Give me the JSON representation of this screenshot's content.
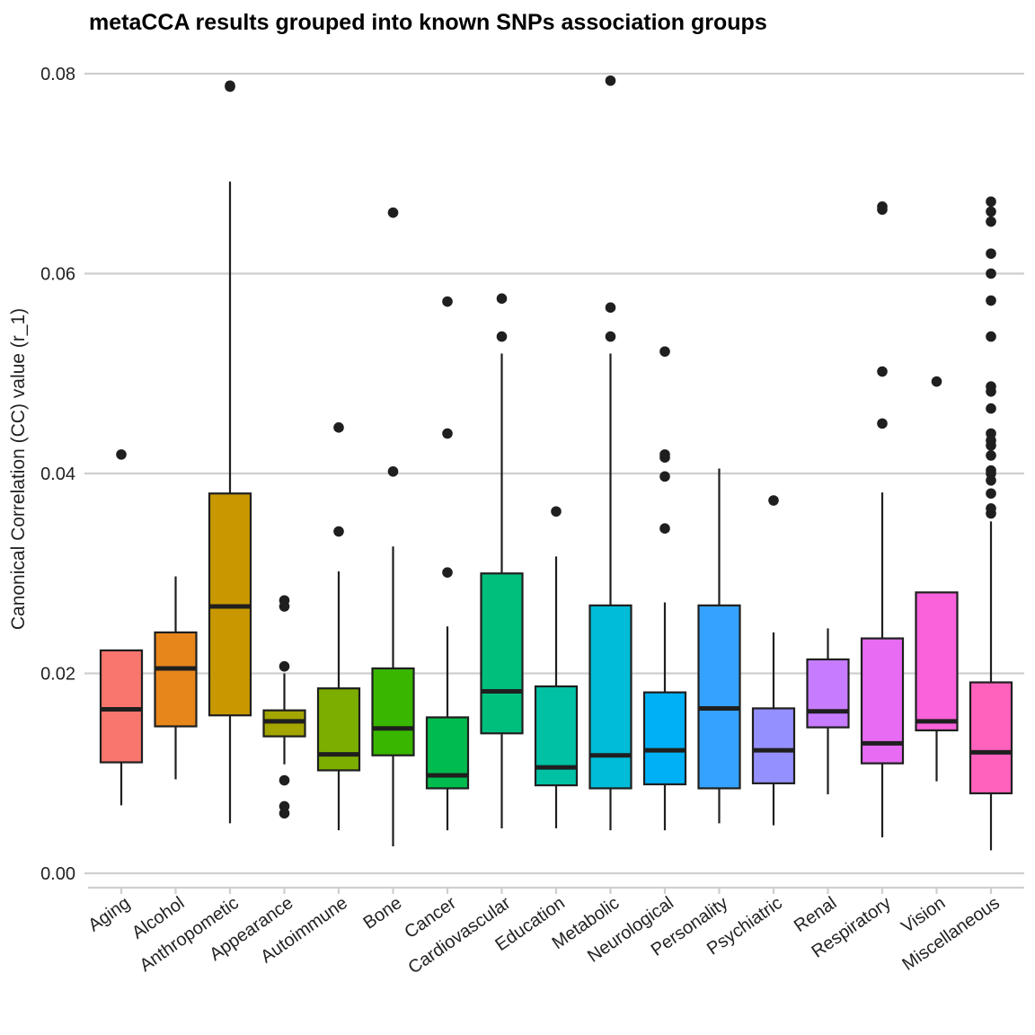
{
  "chart_data": {
    "type": "box",
    "title": "metaCCA results grouped into known SNPs association groups",
    "xlabel": "",
    "ylabel": "Canonical Correlation (CC) value (r_1)",
    "ylim": [
      -0.0015,
      0.0815
    ],
    "yticks": [
      0.0,
      0.02,
      0.04,
      0.06,
      0.08
    ],
    "ytick_labels": [
      "0.00",
      "0.02",
      "0.04",
      "0.06",
      "0.08"
    ],
    "grid": true,
    "legend": "none",
    "categories": [
      "Aging",
      "Alcohol",
      "Anthropometic",
      "Appearance",
      "Autoimmune",
      "Bone",
      "Cancer",
      "Cardiovascular",
      "Education",
      "Metabolic",
      "Neurological",
      "Personality",
      "Psychiatric",
      "Renal",
      "Respiratory",
      "Vision",
      "Miscellaneous"
    ],
    "boxes": [
      {
        "category": "Aging",
        "color": "#F8766D",
        "min": 0.0068,
        "q1": 0.0111,
        "median": 0.0164,
        "q3": 0.0223,
        "max": 0.0223,
        "outliers": [
          0.0419
        ]
      },
      {
        "category": "Alcohol",
        "color": "#E7861B",
        "min": 0.0094,
        "q1": 0.0147,
        "median": 0.0205,
        "q3": 0.0241,
        "max": 0.0297,
        "outliers": []
      },
      {
        "category": "Anthropometic",
        "color": "#C99800",
        "min": 0.005,
        "q1": 0.0158,
        "median": 0.0267,
        "q3": 0.038,
        "max": 0.0692,
        "outliers": [
          0.0788,
          0.0787
        ]
      },
      {
        "category": "Appearance",
        "color": "#A3A500",
        "min": 0.0109,
        "q1": 0.0137,
        "median": 0.0152,
        "q3": 0.0163,
        "max": 0.02,
        "outliers": [
          0.0273,
          0.0267,
          0.0207,
          0.0093,
          0.0067,
          0.006
        ]
      },
      {
        "category": "Autoimmune",
        "color": "#7CAE00",
        "min": 0.0043,
        "q1": 0.0103,
        "median": 0.0119,
        "q3": 0.0185,
        "max": 0.0302,
        "outliers": [
          0.0446,
          0.0342
        ]
      },
      {
        "category": "Bone",
        "color": "#39B600",
        "min": 0.0027,
        "q1": 0.0118,
        "median": 0.0145,
        "q3": 0.0205,
        "max": 0.0327,
        "outliers": [
          0.0661,
          0.0402
        ]
      },
      {
        "category": "Cancer",
        "color": "#00BB4E",
        "min": 0.0043,
        "q1": 0.0085,
        "median": 0.0098,
        "q3": 0.0156,
        "max": 0.0247,
        "outliers": [
          0.0572,
          0.044,
          0.0301
        ]
      },
      {
        "category": "Cardiovascular",
        "color": "#00BF7D",
        "min": 0.0045,
        "q1": 0.014,
        "median": 0.0182,
        "q3": 0.03,
        "max": 0.052,
        "outliers": [
          0.0575,
          0.0537
        ]
      },
      {
        "category": "Education",
        "color": "#00C1A3",
        "min": 0.0045,
        "q1": 0.0088,
        "median": 0.0106,
        "q3": 0.0187,
        "max": 0.0317,
        "outliers": [
          0.0362
        ]
      },
      {
        "category": "Metabolic",
        "color": "#00BCD8",
        "min": 0.0043,
        "q1": 0.0085,
        "median": 0.0118,
        "q3": 0.0268,
        "max": 0.052,
        "outliers": [
          0.0793,
          0.0566,
          0.0537
        ]
      },
      {
        "category": "Neurological",
        "color": "#00B0F6",
        "min": 0.0043,
        "q1": 0.0089,
        "median": 0.0123,
        "q3": 0.0181,
        "max": 0.0271,
        "outliers": [
          0.0522,
          0.0419,
          0.0416,
          0.0397,
          0.0345
        ]
      },
      {
        "category": "Personality",
        "color": "#35A2FF",
        "min": 0.005,
        "q1": 0.0085,
        "median": 0.0165,
        "q3": 0.0268,
        "max": 0.0405,
        "outliers": []
      },
      {
        "category": "Psychiatric",
        "color": "#9590FF",
        "min": 0.0048,
        "q1": 0.009,
        "median": 0.0123,
        "q3": 0.0165,
        "max": 0.0241,
        "outliers": [
          0.0373
        ]
      },
      {
        "category": "Renal",
        "color": "#C77CFF",
        "min": 0.0079,
        "q1": 0.0146,
        "median": 0.0162,
        "q3": 0.0214,
        "max": 0.0245,
        "outliers": []
      },
      {
        "category": "Respiratory",
        "color": "#E76BF3",
        "min": 0.0036,
        "q1": 0.011,
        "median": 0.013,
        "q3": 0.0235,
        "max": 0.0381,
        "outliers": [
          0.0667,
          0.0664,
          0.0502,
          0.045
        ]
      },
      {
        "category": "Vision",
        "color": "#FA62DB",
        "min": 0.0092,
        "q1": 0.0143,
        "median": 0.0152,
        "q3": 0.0281,
        "max": 0.0281,
        "outliers": [
          0.0492
        ]
      },
      {
        "category": "Miscellaneous",
        "color": "#FF62BC",
        "min": 0.0023,
        "q1": 0.008,
        "median": 0.0121,
        "q3": 0.0191,
        "max": 0.0352,
        "outliers": [
          0.0672,
          0.0662,
          0.0652,
          0.062,
          0.06,
          0.0573,
          0.0537,
          0.0487,
          0.0482,
          0.0465,
          0.044,
          0.0433,
          0.0428,
          0.0418,
          0.0403,
          0.04,
          0.0393,
          0.038,
          0.0365,
          0.036
        ]
      }
    ]
  }
}
